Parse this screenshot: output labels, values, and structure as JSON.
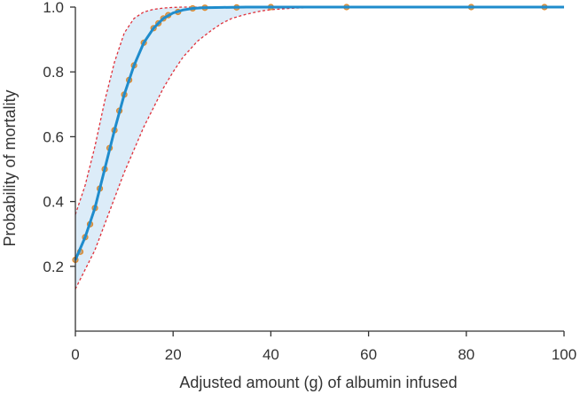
{
  "chart_data": {
    "type": "line",
    "title": "",
    "xlabel": "Adjusted amount (g) of albumin infused",
    "ylabel": "Probability of mortality",
    "xlim": [
      0,
      100
    ],
    "ylim": [
      0,
      1.0
    ],
    "x_ticks": [
      0,
      20,
      40,
      60,
      80,
      100
    ],
    "x_tick_labels": [
      "0",
      "20",
      "40",
      "60",
      "80",
      "100"
    ],
    "y_ticks": [
      0.2,
      0.4,
      0.6,
      0.8,
      1.0
    ],
    "y_tick_labels": [
      "0.2",
      "0.4",
      "0.6",
      "0.8",
      "1.0"
    ],
    "grid": false,
    "colors": {
      "curve": "#1f8ccc",
      "band_fill": "#dcecf8",
      "ci_lines": "#e0303a",
      "points_stroke": "#e0892a",
      "points_fill": "#b8a88c",
      "axis": "#333333"
    },
    "fitted_curve": {
      "x": [
        0,
        2,
        4,
        6,
        8,
        10,
        12,
        14,
        16,
        18,
        20,
        22,
        24,
        26,
        30,
        35,
        40,
        50,
        60,
        70,
        80,
        90,
        100
      ],
      "y": [
        0.22,
        0.29,
        0.38,
        0.5,
        0.62,
        0.73,
        0.82,
        0.89,
        0.935,
        0.965,
        0.982,
        0.991,
        0.996,
        0.998,
        0.999,
        1.0,
        1.0,
        1.0,
        1.0,
        1.0,
        1.0,
        1.0,
        1.0
      ]
    },
    "ci_upper": {
      "x": [
        0,
        2,
        4,
        6,
        8,
        10,
        12,
        14,
        16,
        18,
        20,
        22,
        24,
        26,
        30,
        40,
        100
      ],
      "y": [
        0.36,
        0.45,
        0.57,
        0.71,
        0.83,
        0.92,
        0.965,
        0.985,
        0.993,
        0.997,
        0.999,
        1.0,
        1.0,
        1.0,
        1.0,
        1.0,
        1.0
      ]
    },
    "ci_lower": {
      "x": [
        0,
        2,
        4,
        6,
        8,
        10,
        12,
        14,
        16,
        18,
        20,
        22,
        25,
        28,
        30,
        32,
        35,
        38,
        40,
        45,
        50,
        60,
        100
      ],
      "y": [
        0.13,
        0.19,
        0.25,
        0.33,
        0.41,
        0.49,
        0.56,
        0.63,
        0.69,
        0.75,
        0.8,
        0.845,
        0.895,
        0.93,
        0.95,
        0.965,
        0.978,
        0.988,
        0.992,
        0.997,
        0.999,
        1.0,
        1.0
      ]
    },
    "points": {
      "x": [
        0,
        1,
        2,
        3,
        4,
        5,
        6,
        7,
        8,
        9,
        10,
        11,
        12,
        14,
        16,
        17,
        18,
        19,
        21,
        24,
        26.5,
        33,
        40,
        55.5,
        81,
        96
      ],
      "y": [
        0.22,
        0.245,
        0.29,
        0.33,
        0.38,
        0.44,
        0.5,
        0.565,
        0.62,
        0.68,
        0.73,
        0.775,
        0.82,
        0.89,
        0.935,
        0.95,
        0.965,
        0.975,
        0.985,
        0.996,
        0.998,
        0.999,
        1.0,
        1.0,
        1.0,
        1.0
      ]
    }
  }
}
